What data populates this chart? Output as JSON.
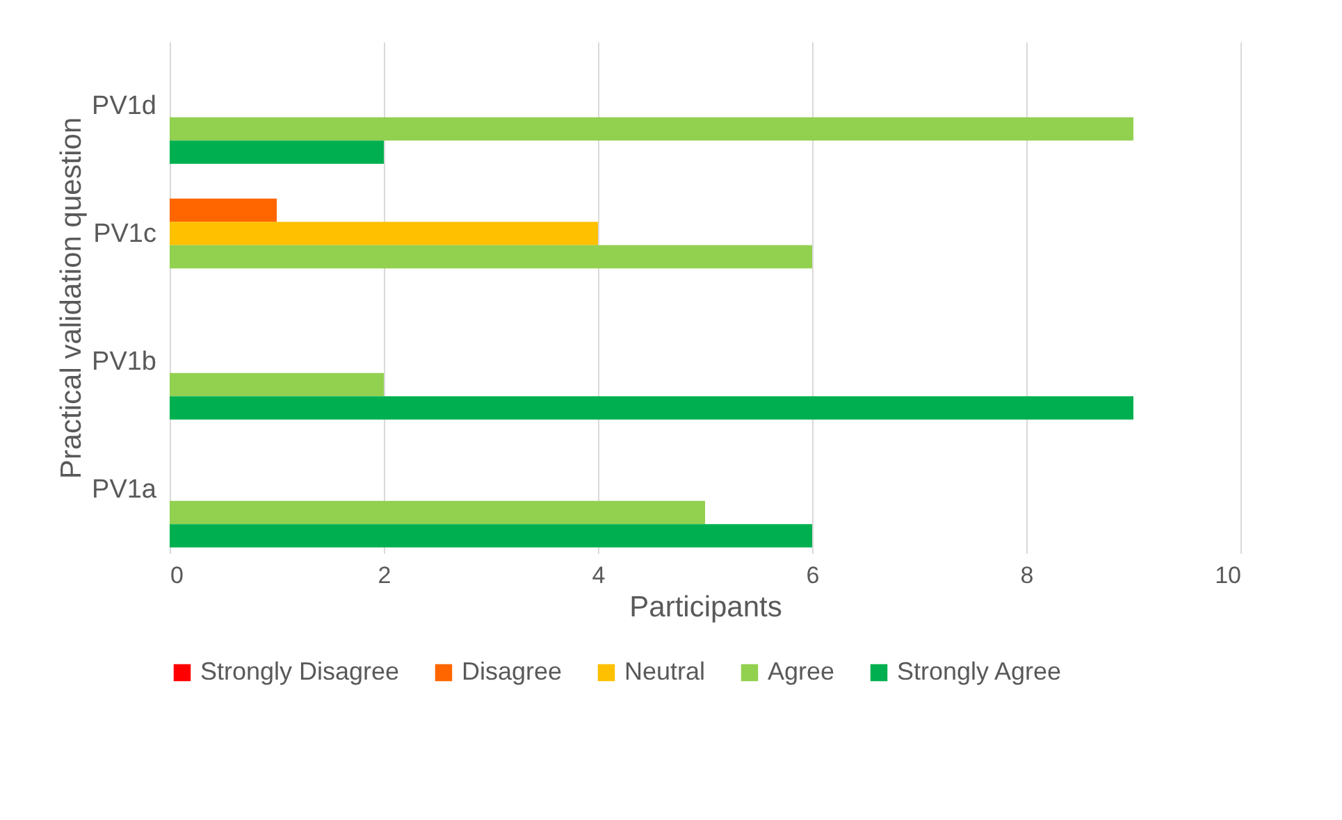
{
  "chart_data": {
    "type": "bar",
    "orientation": "horizontal",
    "xlabel": "Participants",
    "ylabel": "Practical validation question",
    "categories": [
      "PV1d",
      "PV1c",
      "PV1b",
      "PV1a"
    ],
    "series": [
      {
        "name": "Strongly Disagree",
        "color": "#ff0000",
        "values": [
          0,
          0,
          0,
          0
        ]
      },
      {
        "name": "Disagree",
        "color": "#ff6600",
        "values": [
          0,
          1,
          0,
          0
        ]
      },
      {
        "name": "Neutral",
        "color": "#ffc000",
        "values": [
          0,
          4,
          0,
          0
        ]
      },
      {
        "name": "Agree",
        "color": "#92d050",
        "values": [
          9,
          6,
          2,
          5
        ]
      },
      {
        "name": "Strongly Agree",
        "color": "#00b050",
        "values": [
          2,
          0,
          9,
          6
        ]
      }
    ],
    "xlim": [
      0,
      10
    ],
    "xticks": [
      0,
      2,
      4,
      6,
      8,
      10
    ],
    "grid": "x",
    "legend": "bottom"
  }
}
